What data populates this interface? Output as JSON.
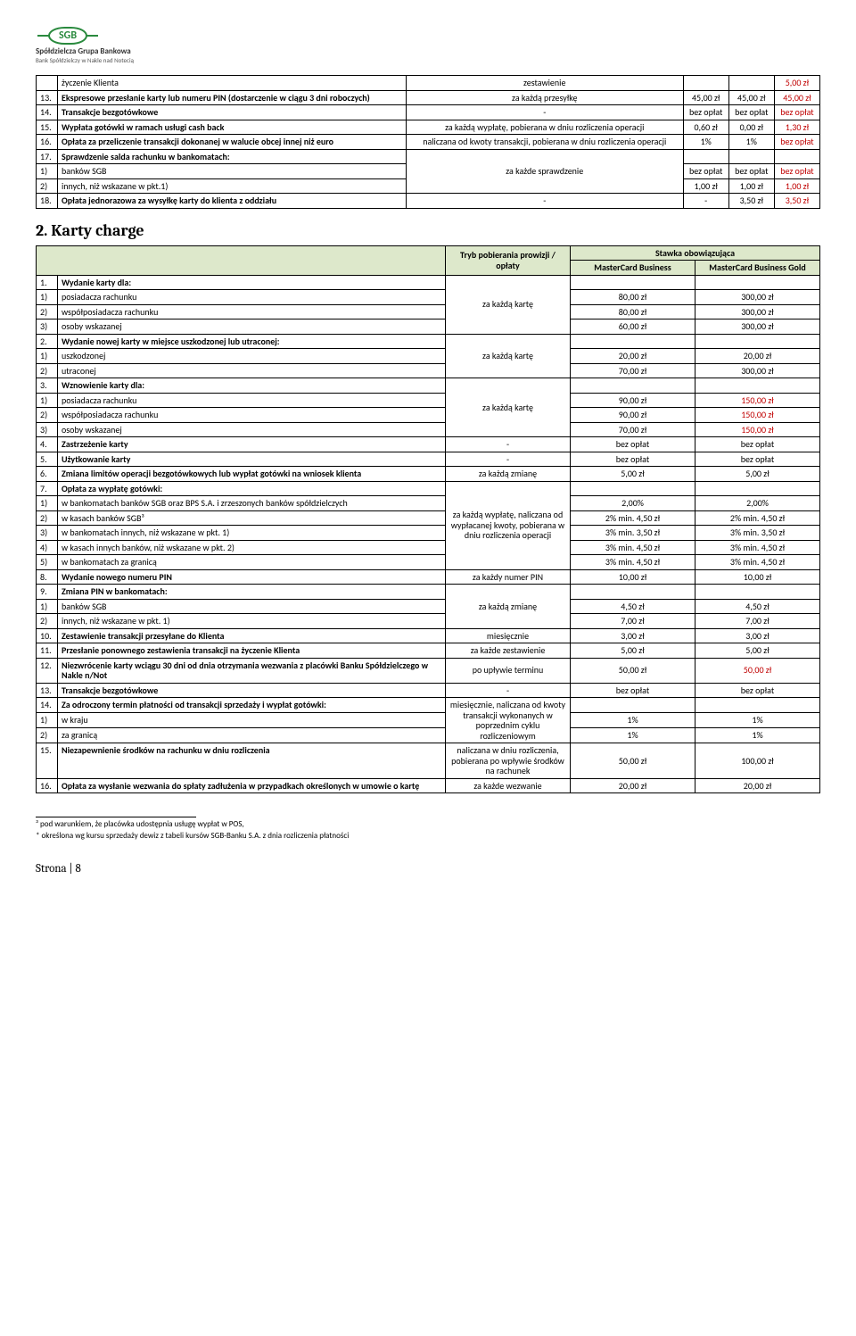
{
  "logo": {
    "abbr": "SGB",
    "line1": "Spółdzielcza Grupa Bankowa",
    "line2": "Bank Spółdzielczy w Nakle nad Notecią"
  },
  "table1": {
    "rows": [
      {
        "num": "",
        "desc": "życzenie Klienta",
        "tryb": "zestawienie",
        "v1": "",
        "v2": "",
        "v3": "5,00 zł",
        "v3red": true
      },
      {
        "num": "13.",
        "desc": "Ekspresowe przesłanie karty lub numeru PIN (dostarczenie w ciągu 3 dni roboczych)",
        "bold": true,
        "tryb": "za każdą przesyłkę",
        "v1": "45,00 zł",
        "v2": "45,00 zł",
        "v3": "45,00 zł",
        "v3red": true
      },
      {
        "num": "14.",
        "desc": "Transakcje bezgotówkowe",
        "bold": true,
        "tryb": "-",
        "v1": "bez opłat",
        "v2": "bez opłat",
        "v3": "bez opłat",
        "v3red": true
      },
      {
        "num": "15.",
        "desc": "Wypłata gotówki w ramach usługi cash back",
        "bold": true,
        "tryb": "za każdą wypłatę, pobierana w dniu rozliczenia operacji",
        "v1": "0,60 zł",
        "v2": "0,00 zł",
        "v3": "1,30 zł",
        "v3red": true
      },
      {
        "num": "16.",
        "desc": "Opłata za przeliczenie transakcji dokonanej w walucie obcej innej niż euro",
        "bold": true,
        "tryb": "naliczana od kwoty transakcji, pobierana w dniu rozliczenia operacji",
        "v1": "1%",
        "v2": "1%",
        "v3": "bez opłat",
        "v3red": true
      }
    ],
    "row17": {
      "num": "17.",
      "desc": "Sprawdzenie salda rachunku w bankomatach:",
      "tryb": "za każde sprawdzenie"
    },
    "row17_1": {
      "num": "1)",
      "desc": "banków SGB",
      "v1": "bez opłat",
      "v2": "bez opłat",
      "v3": "bez opłat",
      "v3red": true
    },
    "row17_2": {
      "num": "2)",
      "desc": "innych, niż wskazane w pkt.1)",
      "v1": "1,00 zł",
      "v2": "1,00 zł",
      "v3": "1,00 zł",
      "v3red": true
    },
    "row18": {
      "num": "18.",
      "desc": "Opłata jednorazowa za wysyłkę karty do klienta z oddziału",
      "bold": true,
      "tryb": "-",
      "v1": "-",
      "v2": "3,50 zł",
      "v3": "3,50 zł",
      "v3red": true
    }
  },
  "section2": {
    "title": "2. Karty charge"
  },
  "table2": {
    "headers": {
      "span": "Stawka obowiązująca",
      "tryb": "Tryb pobierania prowizji / opłaty",
      "c1": "MasterCard Business",
      "c2": "MasterCard Business Gold"
    },
    "groups": [
      {
        "head": {
          "num": "1.",
          "desc": "Wydanie karty dla:",
          "bold": true,
          "tryb": "za każdą kartę",
          "trybRowspan": 4
        },
        "rows": [
          {
            "num": "1)",
            "desc": "posiadacza rachunku",
            "v1": "80,00 zł",
            "v2": "300,00 zł"
          },
          {
            "num": "2)",
            "desc": "współposiadacza rachunku",
            "v1": "80,00 zł",
            "v2": "300,00 zł"
          },
          {
            "num": "3)",
            "desc": "osoby wskazanej",
            "v1": "60,00 zł",
            "v2": "300,00 zł"
          }
        ]
      },
      {
        "head": {
          "num": "2.",
          "desc": "Wydanie nowej karty w miejsce uszkodzonej lub utraconej:",
          "bold": true,
          "tryb": "za każdą kartę",
          "trybRowspan": 3
        },
        "rows": [
          {
            "num": "1)",
            "desc": "uszkodzonej",
            "v1": "20,00 zł",
            "v2": "20,00 zł"
          },
          {
            "num": "2)",
            "desc": "utraconej",
            "v1": "70,00 zł",
            "v2": "300,00 zł"
          }
        ]
      },
      {
        "head": {
          "num": "3.",
          "desc": "Wznowienie karty dla:",
          "bold": true,
          "tryb": "za każdą kartę",
          "trybRowspan": 4
        },
        "rows": [
          {
            "num": "1)",
            "desc": "posiadacza rachunku",
            "v1": "90,00 zł",
            "v2": "150,00 zł",
            "v2red": true
          },
          {
            "num": "2)",
            "desc": "współposiadacza rachunku",
            "v1": "90,00 zł",
            "v2": "150,00 zł",
            "v2red": true
          },
          {
            "num": "3)",
            "desc": "osoby wskazanej",
            "v1": "70,00 zł",
            "v2": "150,00 zł",
            "v2red": true
          }
        ]
      },
      {
        "simple": [
          {
            "num": "4.",
            "desc": "Zastrzeżenie karty",
            "bold": true,
            "tryb": "-",
            "v1": "bez opłat",
            "v2": "bez opłat"
          },
          {
            "num": "5.",
            "desc": "Użytkowanie karty",
            "bold": true,
            "tryb": "-",
            "v1": "bez opłat",
            "v2": "bez opłat"
          },
          {
            "num": "6.",
            "desc": "Zmiana limitów operacji bezgotówkowych lub wypłat gotówki na wniosek klienta",
            "bold": true,
            "tryb": "za każdą zmianę",
            "v1": "5,00 zł",
            "v2": "5,00 zł"
          }
        ]
      },
      {
        "head": {
          "num": "7.",
          "desc": "Opłata za wypłatę gotówki:",
          "bold": true,
          "tryb": "za każdą wypłatę, naliczana od wypłacanej kwoty, pobierana w dniu rozliczenia operacji",
          "trybRowspan": 6
        },
        "rows": [
          {
            "num": "1)",
            "desc": "w bankomatach banków SGB oraz BPS S.A. i zrzeszonych banków spółdzielczych",
            "v1": "2,00%",
            "v2": "2,00%"
          },
          {
            "num": "2)",
            "desc": "w kasach banków SGB³",
            "v1": "2% min. 4,50 zł",
            "v2": "2% min. 4,50 zł"
          },
          {
            "num": "3)",
            "desc": "w bankomatach innych, niż wskazane w pkt. 1)",
            "v1": "3% min. 3,50 zł",
            "v2": "3% min. 3,50 zł"
          },
          {
            "num": "4)",
            "desc": "w kasach innych banków, niż wskazane w pkt. 2)",
            "v1": "3% min. 4,50 zł",
            "v2": "3% min. 4,50 zł"
          },
          {
            "num": "5)",
            "desc": "w bankomatach za granicą",
            "v1": "3% min. 4,50 zł",
            "v2": "3% min. 4,50 zł"
          }
        ]
      },
      {
        "simple": [
          {
            "num": "8.",
            "desc": "Wydanie nowego numeru PIN",
            "bold": true,
            "tryb": "za każdy numer PIN",
            "v1": "10,00 zł",
            "v2": "10,00 zł"
          }
        ]
      },
      {
        "head": {
          "num": "9.",
          "desc": "Zmiana PIN w bankomatach:",
          "bold": true,
          "tryb": "za każdą zmianę",
          "trybRowspan": 3
        },
        "rows": [
          {
            "num": "1)",
            "desc": "banków SGB",
            "v1": "4,50 zł",
            "v2": "4,50 zł"
          },
          {
            "num": "2)",
            "desc": "innych, niż wskazane w pkt. 1)",
            "v1": "7,00 zł",
            "v2": "7,00 zł"
          }
        ]
      },
      {
        "simple": [
          {
            "num": "10.",
            "desc": "Zestawienie transakcji przesyłane do Klienta",
            "bold": true,
            "tryb": "miesięcznie",
            "v1": "3,00 zł",
            "v2": "3,00 zł"
          },
          {
            "num": "11.",
            "desc": "Przesłanie ponownego zestawienia transakcji na życzenie Klienta",
            "bold": true,
            "tryb": "za każde zestawienie",
            "v1": "5,00 zł",
            "v2": "5,00 zł"
          },
          {
            "num": "12.",
            "desc": "Niezwrócenie karty wciągu 30 dni od dnia otrzymania wezwania z placówki Banku Spółdzielczego w Nakle n/Not",
            "bold": true,
            "tryb": "po upływie terminu",
            "v1": "50,00 zł",
            "v2": "50,00 zł",
            "v2red": true
          },
          {
            "num": "13.",
            "desc": "Transakcje bezgotówkowe",
            "bold": true,
            "tryb": "-",
            "v1": "bez opłat",
            "v2": "bez opłat"
          }
        ]
      },
      {
        "head": {
          "num": "14.",
          "desc": "Za odroczony termin płatności od transakcji sprzedaży i wypłat gotówki:",
          "bold": true,
          "tryb": "miesięcznie, naliczana od kwoty transakcji wykonanych w poprzednim cyklu rozliczeniowym",
          "trybRowspan": 3
        },
        "rows": [
          {
            "num": "1)",
            "desc": "w kraju",
            "v1": "1%",
            "v2": "1%"
          },
          {
            "num": "2)",
            "desc": "za granicą",
            "v1": "1%",
            "v2": "1%"
          }
        ]
      },
      {
        "simple": [
          {
            "num": "15.",
            "desc": "Niezapewnienie środków na rachunku w dniu rozliczenia",
            "bold": true,
            "tryb": "naliczana w dniu rozliczenia, pobierana po wpływie środków na rachunek",
            "v1": "50,00 zł",
            "v2": "100,00 zł"
          },
          {
            "num": "16.",
            "desc": "Opłata za wysłanie wezwania do spłaty zadłużenia w przypadkach określonych w umowie o kartę",
            "bold": true,
            "tryb": "za każde wezwanie",
            "v1": "20,00 zł",
            "v2": "20,00 zł"
          }
        ]
      }
    ]
  },
  "footnotes": {
    "f1": "³ pod warunkiem, że placówka udostępnia usługę wypłat w POS,",
    "f2": "* określona wg kursu sprzedaży dewiz z tabeli kursów SGB-Banku S.A. z dnia rozliczenia płatności"
  },
  "footer": "Strona | 8"
}
